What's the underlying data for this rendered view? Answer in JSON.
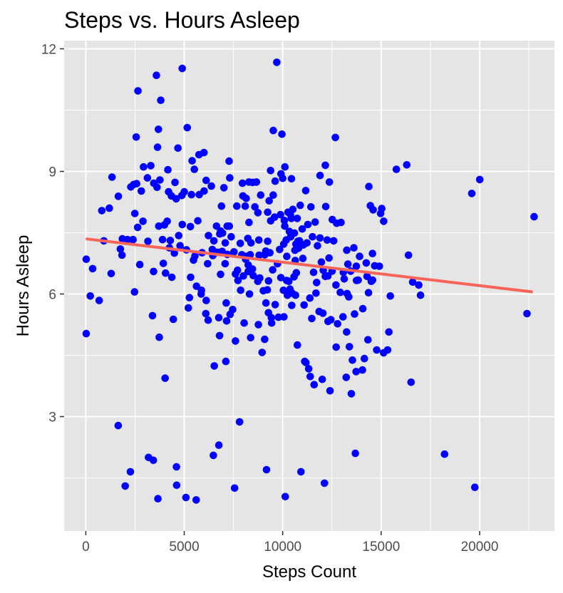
{
  "chart_data": {
    "type": "scatter",
    "title": "Steps vs. Hours Asleep",
    "xlabel": "Steps Count",
    "ylabel": "Hours Asleep",
    "xlim": [
      -1100,
      23800
    ],
    "ylim": [
      0.2,
      12.2
    ],
    "x_ticks": [
      0,
      5000,
      10000,
      15000,
      20000
    ],
    "x_tick_labels": [
      "0",
      "5000",
      "10000",
      "15000",
      "20000"
    ],
    "y_ticks": [
      3,
      6,
      9,
      12
    ],
    "y_tick_labels": [
      "3",
      "6",
      "9",
      "12"
    ],
    "grid": true,
    "point_color": "#0000ff",
    "panel_background": "#e5e5e5",
    "grid_color": "#ffffff",
    "trend_line": {
      "color": "#f8645a",
      "x": [
        0,
        22700
      ],
      "y": [
        7.35,
        6.05
      ]
    },
    "points": [
      [
        21,
        6.85
      ],
      [
        21,
        5.03
      ],
      [
        229,
        5.95
      ],
      [
        346,
        6.62
      ],
      [
        679,
        5.84
      ],
      [
        813,
        8.04
      ],
      [
        917,
        7.3
      ],
      [
        1196,
        8.1
      ],
      [
        1287,
        6.5
      ],
      [
        1331,
        8.86
      ],
      [
        1646,
        2.78
      ],
      [
        1654,
        8.39
      ],
      [
        1756,
        7.1
      ],
      [
        1837,
        6.95
      ],
      [
        1858,
        7.35
      ],
      [
        2003,
        1.3
      ],
      [
        2116,
        7.33
      ],
      [
        2265,
        1.65
      ],
      [
        2286,
        8.62
      ],
      [
        2399,
        7.33
      ],
      [
        2437,
        8.68
      ],
      [
        2475,
        6.05
      ],
      [
        2491,
        7.97
      ],
      [
        2560,
        9.84
      ],
      [
        2581,
        8.7
      ],
      [
        2635,
        7.63
      ],
      [
        2650,
        10.97
      ],
      [
        2743,
        6.72
      ],
      [
        2820,
        8.52
      ],
      [
        2904,
        7.78
      ],
      [
        2930,
        9.11
      ],
      [
        3130,
        8.84
      ],
      [
        3156,
        7.29
      ],
      [
        3185,
        2.0
      ],
      [
        3302,
        9.14
      ],
      [
        3386,
        5.47
      ],
      [
        3433,
        1.93
      ],
      [
        3441,
        6.55
      ],
      [
        3452,
        8.71
      ],
      [
        3586,
        11.35
      ],
      [
        3618,
        8.61
      ],
      [
        3644,
        9.59
      ],
      [
        3664,
        0.99
      ],
      [
        3689,
        10.03
      ],
      [
        3708,
        7.66
      ],
      [
        3731,
        4.94
      ],
      [
        3764,
        8.79
      ],
      [
        3807,
        10.74
      ],
      [
        3897,
        7.33
      ],
      [
        3937,
        6.75
      ],
      [
        3992,
        7.69
      ],
      [
        4027,
        3.94
      ],
      [
        4051,
        6.51
      ],
      [
        4135,
        7.78
      ],
      [
        4170,
        9.04
      ],
      [
        4207,
        8.5
      ],
      [
        4246,
        7.13
      ],
      [
        4289,
        7.31
      ],
      [
        4346,
        8.4
      ],
      [
        4370,
        6.41
      ],
      [
        4443,
        5.38
      ],
      [
        4500,
        7.0
      ],
      [
        4530,
        8.73
      ],
      [
        4591,
        8.33
      ],
      [
        4603,
        1.77
      ],
      [
        4614,
        1.32
      ],
      [
        4681,
        9.57
      ],
      [
        4718,
        7.43
      ],
      [
        4788,
        7.18
      ],
      [
        4880,
        8.41
      ],
      [
        4898,
        11.52
      ],
      [
        4902,
        7.7
      ],
      [
        5002,
        8.5
      ],
      [
        5084,
        1.02
      ],
      [
        5112,
        7.08
      ],
      [
        5153,
        10.07
      ],
      [
        5208,
        5.66
      ],
      [
        5263,
        5.91
      ],
      [
        5314,
        7.65
      ],
      [
        5323,
        6.41
      ],
      [
        5368,
        8.43
      ],
      [
        5401,
        9.26
      ],
      [
        5471,
        6.83
      ],
      [
        5511,
        9.05
      ],
      [
        5545,
        6.93
      ],
      [
        5607,
        0.96
      ],
      [
        5621,
        6.19
      ],
      [
        5688,
        7.79
      ],
      [
        5746,
        9.41
      ],
      [
        5761,
        8.43
      ],
      [
        5861,
        6.0
      ],
      [
        5874,
        6.09
      ],
      [
        5906,
        7.01
      ],
      [
        6000,
        9.46
      ],
      [
        6008,
        8.52
      ],
      [
        6095,
        5.52
      ],
      [
        6112,
        8.78
      ],
      [
        6117,
        5.84
      ],
      [
        6188,
        6.74
      ],
      [
        6216,
        5.36
      ],
      [
        6230,
        7.43
      ],
      [
        6379,
        8.64
      ],
      [
        6426,
        7.09
      ],
      [
        6454,
        6.94
      ],
      [
        6478,
        2.05
      ],
      [
        6505,
        7.3
      ],
      [
        6525,
        4.24
      ],
      [
        6556,
        7.03
      ],
      [
        6638,
        7.66
      ],
      [
        6719,
        7.02
      ],
      [
        6754,
        5.42
      ],
      [
        6758,
        2.3
      ],
      [
        6794,
        4.98
      ],
      [
        6803,
        7.47
      ],
      [
        6845,
        6.48
      ],
      [
        6849,
        7.54
      ],
      [
        6890,
        8.15
      ],
      [
        6929,
        7.04
      ],
      [
        6945,
        7.49
      ],
      [
        7013,
        8.6
      ],
      [
        7077,
        6.74
      ],
      [
        7082,
        7.25
      ],
      [
        7111,
        4.35
      ],
      [
        7130,
        5.78
      ],
      [
        7150,
        5.34
      ],
      [
        7179,
        7.66
      ],
      [
        7190,
        6.97
      ],
      [
        7279,
        9.25
      ],
      [
        7289,
        7.66
      ],
      [
        7310,
        8.84
      ],
      [
        7330,
        5.5
      ],
      [
        7385,
        7.4
      ],
      [
        7458,
        5.62
      ],
      [
        7523,
        7.03
      ],
      [
        7557,
        1.25
      ],
      [
        7600,
        4.85
      ],
      [
        7601,
        6.49
      ],
      [
        7670,
        8.15
      ],
      [
        7704,
        6.58
      ],
      [
        7727,
        6.33
      ],
      [
        7811,
        2.87
      ],
      [
        7845,
        7.24
      ],
      [
        7864,
        6.09
      ],
      [
        7928,
        6.96
      ],
      [
        7957,
        8.71
      ],
      [
        7981,
        8.4
      ],
      [
        8003,
        6.44
      ],
      [
        8043,
        5.29
      ],
      [
        8095,
        8.15
      ],
      [
        8118,
        6.85
      ],
      [
        8142,
        8.34
      ],
      [
        8176,
        6.92
      ],
      [
        8232,
        7.36
      ],
      [
        8247,
        6.55
      ],
      [
        8249,
        6.71
      ],
      [
        8284,
        8.74
      ],
      [
        8287,
        7.75
      ],
      [
        8312,
        6.0
      ],
      [
        8351,
        6.96
      ],
      [
        8371,
        4.93
      ],
      [
        8388,
        7.25
      ],
      [
        8463,
        6.61
      ],
      [
        8469,
        8.73
      ],
      [
        8507,
        6.45
      ],
      [
        8587,
        8.13
      ],
      [
        8663,
        8.74
      ],
      [
        8736,
        6.31
      ],
      [
        8742,
        7.99
      ],
      [
        8766,
        5.25
      ],
      [
        8787,
        7.32
      ],
      [
        8803,
        6.95
      ],
      [
        8834,
        6.39
      ],
      [
        8882,
        8.42
      ],
      [
        8954,
        4.57
      ],
      [
        9017,
        6.08
      ],
      [
        9086,
        4.89
      ],
      [
        9090,
        6.96
      ],
      [
        9142,
        7.05
      ],
      [
        9151,
        5.78
      ],
      [
        9180,
        1.7
      ],
      [
        9218,
        6.1
      ],
      [
        9235,
        8.0
      ],
      [
        9237,
        7.29
      ],
      [
        9276,
        5.54
      ],
      [
        9281,
        6.32
      ],
      [
        9312,
        8.28
      ],
      [
        9350,
        7.01
      ],
      [
        9385,
        9.02
      ],
      [
        9390,
        7.79
      ],
      [
        9423,
        5.42
      ],
      [
        9440,
        5.29
      ],
      [
        9490,
        6.59
      ],
      [
        9520,
        8.42
      ],
      [
        9521,
        10.0
      ],
      [
        9583,
        7.88
      ],
      [
        9615,
        5.74
      ],
      [
        9617,
        8.76
      ],
      [
        9699,
        11.67
      ],
      [
        9737,
        6.74
      ],
      [
        9782,
        5.43
      ],
      [
        9844,
        7.09
      ],
      [
        9887,
        7.94
      ],
      [
        9905,
        6.4
      ],
      [
        9912,
        8.94
      ],
      [
        9961,
        9.91
      ],
      [
        10000,
        8.83
      ],
      [
        10035,
        6.09
      ],
      [
        10052,
        7.22
      ],
      [
        10063,
        5.44
      ],
      [
        10082,
        7.8
      ],
      [
        10106,
        7.66
      ],
      [
        10113,
        9.11
      ],
      [
        10129,
        1.04
      ],
      [
        10176,
        7.32
      ],
      [
        10198,
        6.33
      ],
      [
        10205,
        6.92
      ],
      [
        10239,
        5.97
      ],
      [
        10271,
        8.0
      ],
      [
        10307,
        6.31
      ],
      [
        10342,
        7.53
      ],
      [
        10369,
        6.12
      ],
      [
        10387,
        7.95
      ],
      [
        10407,
        7.4
      ],
      [
        10439,
        7.85
      ],
      [
        10444,
        8.82
      ],
      [
        10459,
        5.72
      ],
      [
        10476,
        6.02
      ],
      [
        10513,
        8.07
      ],
      [
        10575,
        6.42
      ],
      [
        10594,
        7.49
      ],
      [
        10621,
        7.07
      ],
      [
        10637,
        6.82
      ],
      [
        10652,
        5.97
      ],
      [
        10673,
        7.22
      ],
      [
        10691,
        6.52
      ],
      [
        10733,
        7.85
      ],
      [
        10746,
        4.75
      ],
      [
        10773,
        7.29
      ],
      [
        10802,
        7.12
      ],
      [
        10851,
        7.3
      ],
      [
        10891,
        8.17
      ],
      [
        10928,
        1.65
      ],
      [
        10991,
        7.59
      ],
      [
        11024,
        6.87
      ],
      [
        11042,
        7.2
      ],
      [
        11085,
        5.73
      ],
      [
        11117,
        4.35
      ],
      [
        11170,
        8.53
      ],
      [
        11180,
        4.32
      ],
      [
        11230,
        7.25
      ],
      [
        11278,
        7.7
      ],
      [
        11322,
        4.17
      ],
      [
        11378,
        5.9
      ],
      [
        11398,
        3.98
      ],
      [
        11435,
        8.13
      ],
      [
        11475,
        5.4
      ],
      [
        11512,
        7.4
      ],
      [
        11568,
        6.53
      ],
      [
        11596,
        3.78
      ],
      [
        11647,
        7.76
      ],
      [
        11692,
        6.02
      ],
      [
        11723,
        6.28
      ],
      [
        11766,
        7.18
      ],
      [
        11849,
        5.57
      ],
      [
        11892,
        7.37
      ],
      [
        11895,
        8.9
      ],
      [
        11964,
        6.78
      ],
      [
        12009,
        3.91
      ],
      [
        12040,
        5.53
      ],
      [
        12060,
        6.58
      ],
      [
        12121,
        1.37
      ],
      [
        12164,
        6.43
      ],
      [
        12166,
        9.15
      ],
      [
        12185,
        8.14
      ],
      [
        12258,
        7.32
      ],
      [
        12293,
        6.44
      ],
      [
        12301,
        5.33
      ],
      [
        12351,
        6.88
      ],
      [
        12372,
        8.74
      ],
      [
        12402,
        3.63
      ],
      [
        12445,
        5.37
      ],
      [
        12507,
        6.56
      ],
      [
        12518,
        7.82
      ],
      [
        12586,
        7.3
      ],
      [
        12675,
        9.83
      ],
      [
        12703,
        6.22
      ],
      [
        12715,
        4.7
      ],
      [
        12738,
        7.73
      ],
      [
        12788,
        5.27
      ],
      [
        12923,
        6.04
      ],
      [
        12961,
        7.75
      ],
      [
        13061,
        5.44
      ],
      [
        13081,
        6.53
      ],
      [
        13122,
        6.37
      ],
      [
        13224,
        3.96
      ],
      [
        13246,
        5.07
      ],
      [
        13252,
        7.07
      ],
      [
        13267,
        6.01
      ],
      [
        13311,
        6.73
      ],
      [
        13354,
        5.93
      ],
      [
        13387,
        4.71
      ],
      [
        13451,
        6.56
      ],
      [
        13486,
        3.56
      ],
      [
        13541,
        4.38
      ],
      [
        13613,
        7.13
      ],
      [
        13648,
        5.51
      ],
      [
        13689,
        2.1
      ],
      [
        13728,
        4.1
      ],
      [
        13737,
        6.68
      ],
      [
        13750,
        6.33
      ],
      [
        13831,
        6.34
      ],
      [
        13905,
        6.92
      ],
      [
        14051,
        4.14
      ],
      [
        14067,
        5.64
      ],
      [
        14149,
        4.42
      ],
      [
        14243,
        6.76
      ],
      [
        14285,
        6.43
      ],
      [
        14327,
        4.88
      ],
      [
        14359,
        6.03
      ],
      [
        14376,
        8.63
      ],
      [
        14451,
        8.16
      ],
      [
        14497,
        6.31
      ],
      [
        14560,
        6.99
      ],
      [
        14564,
        6.34
      ],
      [
        14593,
        8.06
      ],
      [
        14673,
        6.69
      ],
      [
        14775,
        4.63
      ],
      [
        14909,
        6.68
      ],
      [
        14974,
        7.97
      ],
      [
        15031,
        8.09
      ],
      [
        15126,
        4.56
      ],
      [
        15130,
        7.78
      ],
      [
        15326,
        4.63
      ],
      [
        15394,
        5.07
      ],
      [
        15466,
        5.95
      ],
      [
        15772,
        9.05
      ],
      [
        16300,
        9.16
      ],
      [
        16388,
        6.95
      ],
      [
        16519,
        3.84
      ],
      [
        16600,
        6.29
      ],
      [
        16910,
        6.22
      ],
      [
        17000,
        5.97
      ],
      [
        18219,
        2.08
      ],
      [
        19600,
        8.46
      ],
      [
        19757,
        1.27
      ],
      [
        20006,
        8.8
      ],
      [
        22406,
        5.52
      ],
      [
        22770,
        7.89
      ]
    ]
  }
}
